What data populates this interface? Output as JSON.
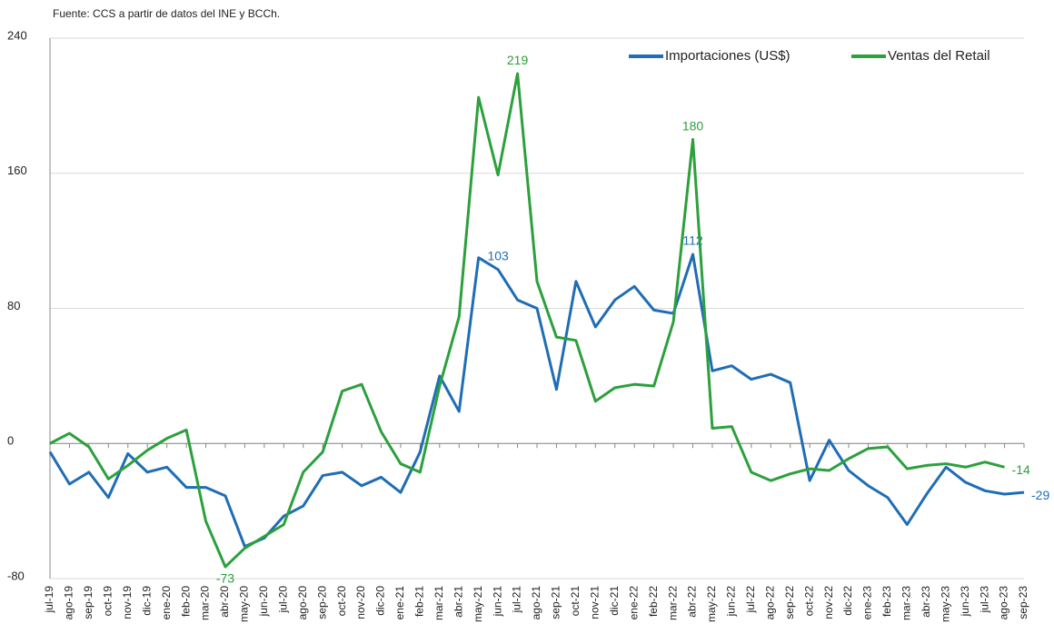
{
  "chart_data": {
    "type": "line",
    "source": "Fuente: CCS a partir de datos del INE y BCCh.",
    "categories": [
      "jul-19",
      "ago-19",
      "sep-19",
      "oct-19",
      "nov-19",
      "dic-19",
      "ene-20",
      "feb-20",
      "mar-20",
      "abr-20",
      "may-20",
      "jun-20",
      "jul-20",
      "ago-20",
      "sep-20",
      "oct-20",
      "nov-20",
      "dic-20",
      "ene-21",
      "feb-21",
      "mar-21",
      "abr-21",
      "may-21",
      "jun-21",
      "jul-21",
      "ago-21",
      "sep-21",
      "oct-21",
      "nov-21",
      "dic-21",
      "ene-22",
      "feb-22",
      "mar-22",
      "abr-22",
      "may-22",
      "jun-22",
      "jul-22",
      "ago-22",
      "sep-22",
      "oct-22",
      "nov-22",
      "dic-22",
      "ene-23",
      "feb-23",
      "mar-23",
      "abr-23",
      "may-23",
      "jun-23",
      "jul-23",
      "ago-23",
      "sep-23"
    ],
    "series": [
      {
        "name": "Importaciones (US$)",
        "color": "#1f6db5",
        "values": [
          -5,
          -24,
          -17,
          -32,
          -6,
          -17,
          -14,
          -26,
          -26,
          -31,
          -61,
          -56,
          -43,
          -37,
          -19,
          -17,
          -25,
          -20,
          -29,
          -5,
          40,
          19,
          110,
          103,
          85,
          80,
          32,
          96,
          69,
          85,
          93,
          79,
          77,
          112,
          43,
          46,
          38,
          41,
          36,
          -22,
          2,
          -16,
          -25,
          -32,
          -48,
          -30,
          -14,
          -23,
          -28,
          -30,
          -29
        ],
        "value_labels": [
          null,
          null,
          null,
          null,
          null,
          null,
          null,
          null,
          null,
          null,
          null,
          null,
          null,
          null,
          null,
          null,
          null,
          null,
          null,
          null,
          null,
          null,
          null,
          "103",
          null,
          null,
          null,
          null,
          null,
          null,
          null,
          null,
          null,
          "112",
          null,
          null,
          null,
          null,
          null,
          null,
          null,
          null,
          null,
          null,
          null,
          null,
          null,
          null,
          null,
          null,
          "-29"
        ]
      },
      {
        "name": "Ventas del Retail",
        "color": "#2ca03c",
        "values": [
          0,
          6,
          -2,
          -21,
          -13,
          -4,
          3,
          8,
          -46,
          -73,
          -62,
          -55,
          -48,
          -17,
          -5,
          31,
          35,
          7,
          -12,
          -17,
          34,
          75,
          205,
          159,
          219,
          96,
          63,
          61,
          25,
          33,
          35,
          34,
          72,
          180,
          9,
          10,
          -17,
          -22,
          -18,
          -15,
          -16,
          -9,
          -3,
          -2,
          -15,
          -13,
          -12,
          -14,
          -11,
          -14,
          null
        ],
        "value_labels": [
          null,
          null,
          null,
          null,
          null,
          null,
          null,
          null,
          null,
          "-73",
          null,
          null,
          null,
          null,
          null,
          null,
          null,
          null,
          null,
          null,
          null,
          null,
          null,
          null,
          "219",
          null,
          null,
          null,
          null,
          null,
          null,
          null,
          null,
          "180",
          null,
          null,
          null,
          null,
          null,
          null,
          null,
          null,
          null,
          null,
          null,
          null,
          null,
          null,
          null,
          "-14",
          null
        ]
      }
    ],
    "ylim": [
      -80,
      240
    ],
    "yticks": [
      -80,
      0,
      80,
      160,
      240
    ],
    "grid": true,
    "legend": "top-right"
  }
}
